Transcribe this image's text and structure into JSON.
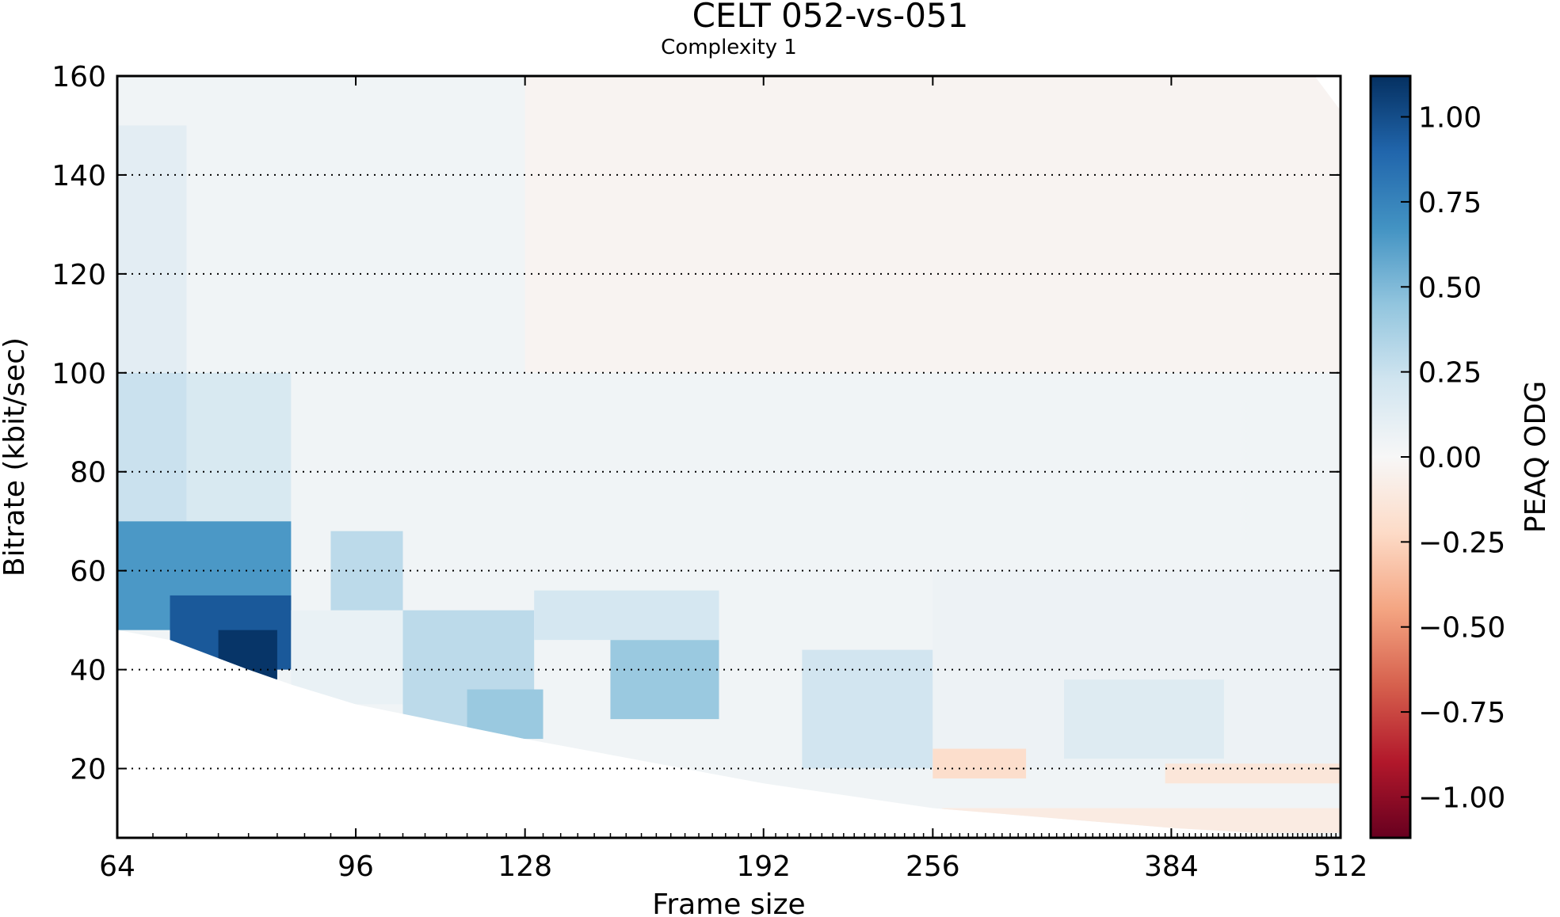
{
  "chart_data": {
    "type": "heatmap",
    "title": "CELT 052-vs-051",
    "subtitle": "Complexity 1",
    "xlabel": "Frame size",
    "ylabel": "Bitrate (kbit/sec)",
    "x_scale": "log2",
    "xlim": [
      64,
      512
    ],
    "ylim": [
      6,
      160
    ],
    "x_ticks": [
      64,
      96,
      128,
      192,
      256,
      384,
      512
    ],
    "y_ticks": [
      20,
      40,
      60,
      80,
      100,
      120,
      140,
      160
    ],
    "grid": "horizontal dotted",
    "colorbar": {
      "label": "PEAQ ODG",
      "range": [
        -1.12,
        1.12
      ],
      "ticks": [
        1.0,
        0.75,
        0.5,
        0.25,
        0.0,
        -0.25,
        -0.5,
        -0.75,
        -1.0
      ],
      "tick_labels": [
        "1.00",
        "0.75",
        "0.50",
        "0.25",
        "0.00",
        "−0.25",
        "−0.50",
        "−0.75",
        "−1.00"
      ],
      "colormap": "RdBu",
      "colors": [
        "#67001f",
        "#b2182b",
        "#d6604d",
        "#f4a582",
        "#fddbc7",
        "#f7f7f7",
        "#d1e5f0",
        "#92c5de",
        "#4393c3",
        "#2166ac",
        "#053061"
      ]
    },
    "min_bitrate_boundary": [
      {
        "frame": 64,
        "bitrate": 48
      },
      {
        "frame": 70,
        "bitrate": 46
      },
      {
        "frame": 80,
        "bitrate": 40
      },
      {
        "frame": 86,
        "bitrate": 37
      },
      {
        "frame": 96,
        "bitrate": 33
      },
      {
        "frame": 128,
        "bitrate": 26
      },
      {
        "frame": 192,
        "bitrate": 17
      },
      {
        "frame": 256,
        "bitrate": 12
      },
      {
        "frame": 384,
        "bitrate": 8
      },
      {
        "frame": 512,
        "bitrate": 6
      }
    ],
    "max_bitrate_boundary": [
      {
        "frame": 64,
        "bitrate": 160
      },
      {
        "frame": 490,
        "bitrate": 160
      },
      {
        "frame": 512,
        "bitrate": 153
      }
    ],
    "regions": [
      {
        "frame": [
          64,
          86
        ],
        "bitrate": [
          48,
          70
        ],
        "odg": 0.65
      },
      {
        "frame": [
          64,
          72
        ],
        "bitrate": [
          70,
          100
        ],
        "odg": 0.25
      },
      {
        "frame": [
          64,
          72
        ],
        "bitrate": [
          100,
          150
        ],
        "odg": 0.12
      },
      {
        "frame": [
          72,
          86
        ],
        "bitrate": [
          70,
          100
        ],
        "odg": 0.18
      },
      {
        "frame": [
          70,
          86
        ],
        "bitrate": [
          40,
          55
        ],
        "odg": 0.95
      },
      {
        "frame": [
          76,
          84
        ],
        "bitrate": [
          38,
          48
        ],
        "odg": 1.1
      },
      {
        "frame": [
          86,
          104
        ],
        "bitrate": [
          33,
          52
        ],
        "odg": 0.08
      },
      {
        "frame": [
          92,
          104
        ],
        "bitrate": [
          52,
          68
        ],
        "odg": 0.3
      },
      {
        "frame": [
          104,
          130
        ],
        "bitrate": [
          26,
          52
        ],
        "odg": 0.3
      },
      {
        "frame": [
          116,
          132
        ],
        "bitrate": [
          26,
          36
        ],
        "odg": 0.42
      },
      {
        "frame": [
          148,
          178
        ],
        "bitrate": [
          30,
          46
        ],
        "odg": 0.42
      },
      {
        "frame": [
          130,
          178
        ],
        "bitrate": [
          46,
          56
        ],
        "odg": 0.2
      },
      {
        "frame": [
          205,
          256
        ],
        "bitrate": [
          20,
          44
        ],
        "odg": 0.22
      },
      {
        "frame": [
          256,
          512
        ],
        "bitrate": [
          20,
          60
        ],
        "odg": 0.06
      },
      {
        "frame": [
          320,
          420
        ],
        "bitrate": [
          22,
          38
        ],
        "odg": 0.15
      },
      {
        "frame": [
          256,
          300
        ],
        "bitrate": [
          18,
          24
        ],
        "odg": -0.2
      },
      {
        "frame": [
          380,
          512
        ],
        "bitrate": [
          17,
          21
        ],
        "odg": -0.14
      },
      {
        "frame": [
          260,
          512
        ],
        "bitrate": [
          7,
          12
        ],
        "odg": -0.1
      },
      {
        "frame": [
          128,
          512
        ],
        "bitrate": [
          100,
          160
        ],
        "odg": -0.03
      }
    ],
    "background_odg": 0.04
  }
}
